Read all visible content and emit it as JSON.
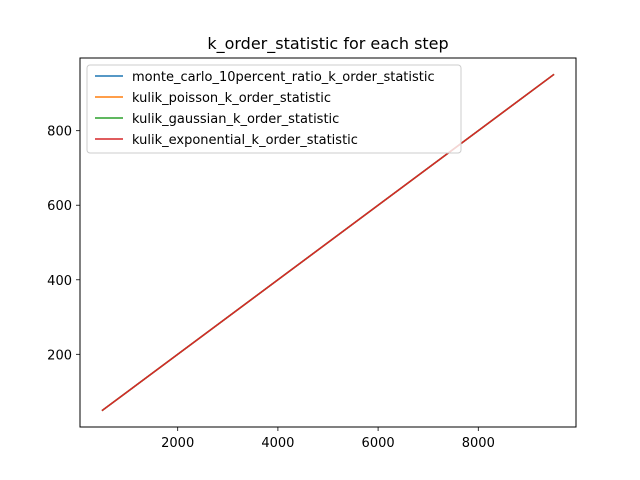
{
  "chart_data": {
    "type": "line",
    "title": "k_order_statistic for each step",
    "xlabel": "",
    "ylabel": "",
    "xlim": [
      50,
      9950
    ],
    "ylim": [
      5,
      995
    ],
    "xticks": [
      2000,
      4000,
      6000,
      8000
    ],
    "xtick_labels": [
      "2000",
      "4000",
      "6000",
      "8000"
    ],
    "yticks": [
      200,
      400,
      600,
      800
    ],
    "ytick_labels": [
      "200",
      "400",
      "600",
      "800"
    ],
    "grid": false,
    "legend_position": "upper-left",
    "series": [
      {
        "name": "monte_carlo_10percent_ratio_k_order_statistic",
        "color": "#1f77b4",
        "x": [
          500,
          9500
        ],
        "y": [
          50,
          950
        ]
      },
      {
        "name": "kulik_poisson_k_order_statistic",
        "color": "#ff7f0e",
        "x": [
          500,
          9500
        ],
        "y": [
          50,
          950
        ]
      },
      {
        "name": "kulik_gaussian_k_order_statistic",
        "color": "#2ca02c",
        "x": [
          500,
          9500
        ],
        "y": [
          50,
          950
        ]
      },
      {
        "name": "kulik_exponential_k_order_statistic",
        "color": "#d62728",
        "x": [
          500,
          9500
        ],
        "y": [
          50,
          950
        ]
      }
    ]
  }
}
